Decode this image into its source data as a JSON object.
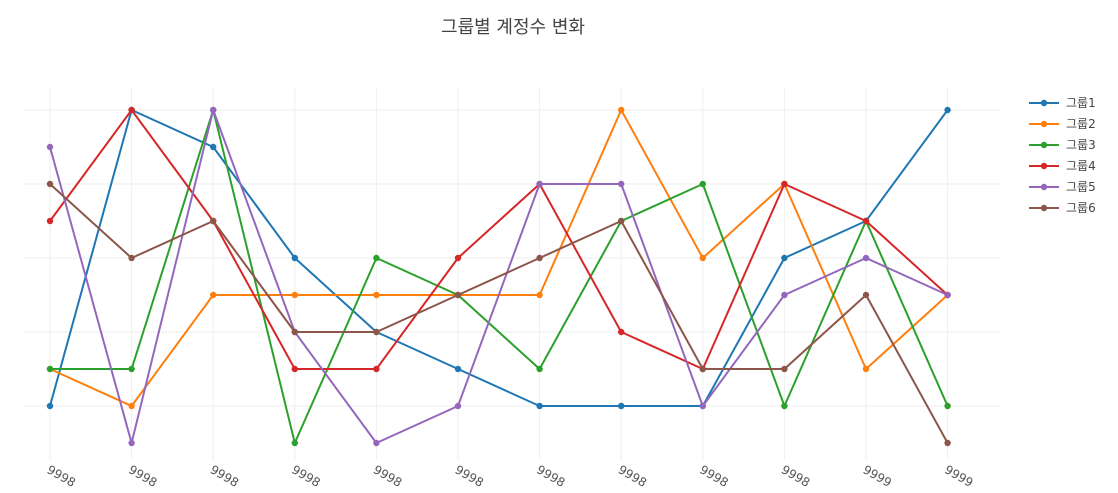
{
  "chart_data": {
    "type": "line",
    "title": "그룹별 계정수 변화",
    "x": [
      "9998",
      "9998",
      "9998",
      "9998",
      "9998",
      "9998",
      "9998",
      "9998",
      "9998",
      "9998",
      "9999",
      "9999"
    ],
    "ylim": [
      0.3,
      5.8
    ],
    "grid": true,
    "legend_position": "right",
    "series": [
      {
        "name": "그룹1",
        "color": "#1f77b4",
        "values": [
          1,
          5,
          4.5,
          3,
          2,
          1.5,
          1,
          1,
          1,
          3,
          3.5,
          5
        ]
      },
      {
        "name": "그룹2",
        "color": "#ff7f0e",
        "values": [
          1.5,
          1,
          2.5,
          2.5,
          2.5,
          2.5,
          2.5,
          5,
          3,
          4,
          1.5,
          2.5
        ]
      },
      {
        "name": "그룹3",
        "color": "#2ca02c",
        "values": [
          1.5,
          1.5,
          5,
          0.5,
          3,
          2.5,
          1.5,
          3.5,
          4,
          1,
          3.5,
          1
        ]
      },
      {
        "name": "그룹4",
        "color": "#d62728",
        "values": [
          3.5,
          5,
          3.5,
          1.5,
          1.5,
          3,
          4,
          2,
          1.5,
          4,
          3.5,
          2.5
        ]
      },
      {
        "name": "그룹5",
        "color": "#9467bd",
        "values": [
          4.5,
          0.5,
          5,
          2,
          0.5,
          1,
          4,
          4,
          1,
          2.5,
          3,
          2.5
        ]
      },
      {
        "name": "그룹6",
        "color": "#8c564b",
        "values": [
          4,
          3,
          3.5,
          2,
          2,
          2.5,
          3,
          3.5,
          1.5,
          1.5,
          2.5,
          0.5
        ]
      }
    ]
  }
}
